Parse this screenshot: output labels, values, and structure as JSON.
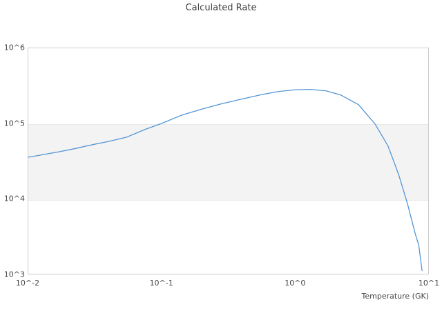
{
  "title": "Calculated Rate",
  "colors": {
    "line": "#5295d5",
    "band": "#f3f3f3",
    "band_edge": "#e9e9e9",
    "plot_border": "#cccccc",
    "text": "#454545",
    "title_text": "#3c3c3c"
  },
  "chart_data": {
    "type": "line",
    "title": "Calculated Rate",
    "xlabel": "Temperature (GK)",
    "ylabel": "",
    "x_scale": "log",
    "y_scale": "log",
    "xlim": [
      0.01,
      10
    ],
    "ylim": [
      1000,
      1000000
    ],
    "grid": false,
    "legend": "none",
    "x_ticks": [
      {
        "label": "10^-2",
        "value": 0.01
      },
      {
        "label": "10^-1",
        "value": 0.1
      },
      {
        "label": "10^0",
        "value": 1
      },
      {
        "label": "10^1",
        "value": 10
      }
    ],
    "y_ticks": [
      {
        "label": "10^3",
        "value": 1000
      },
      {
        "label": "10^4",
        "value": 10000
      },
      {
        "label": "10^5",
        "value": 100000
      },
      {
        "label": "10^6",
        "value": 1000000
      }
    ],
    "annotations": [
      {
        "type": "horizontal-band",
        "from": 10000,
        "to": 100000,
        "note": "shaded rate band between 10^4 and 10^5"
      }
    ],
    "series": [
      {
        "name": "calculated-rate",
        "x": [
          0.01,
          0.013,
          0.017,
          0.022,
          0.03,
          0.04,
          0.055,
          0.075,
          0.1,
          0.14,
          0.2,
          0.28,
          0.4,
          0.55,
          0.75,
          1.0,
          1.3,
          1.7,
          2.2,
          3.0,
          4.0,
          5.0,
          6.0,
          7.0,
          8.0,
          8.5,
          9.0
        ],
        "y": [
          35500,
          38500,
          42000,
          46000,
          52000,
          57500,
          66000,
          83000,
          100000,
          128000,
          155000,
          182000,
          211000,
          240000,
          266000,
          280000,
          284000,
          272000,
          240000,
          178000,
          98000,
          50000,
          21000,
          8500,
          3400,
          2400,
          1100
        ]
      }
    ]
  }
}
